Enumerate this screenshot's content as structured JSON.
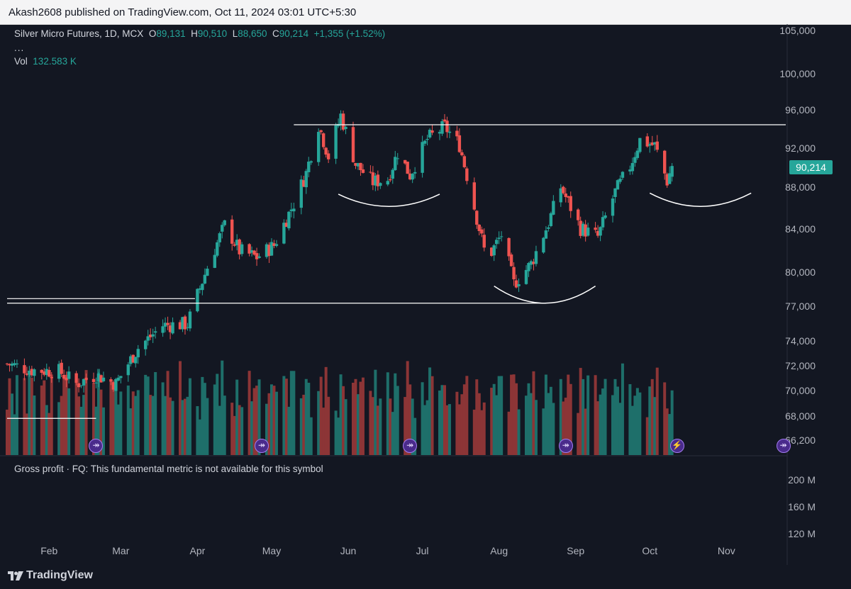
{
  "publisher": "Akash2608 published on TradingView.com, Oct 11, 2024 03:01 UTC+5:30",
  "legend": {
    "symbol": "Silver Micro Futures, 1D, MCX",
    "open_label": "O",
    "open": "89,131",
    "high_label": "H",
    "high": "90,510",
    "low_label": "L",
    "low": "88,650",
    "close_label": "C",
    "close": "90,214",
    "change": "+1,355 (+1.52%)",
    "more": "...",
    "vol_label": "Vol",
    "vol_value": "132.583 K"
  },
  "price_tag": "90,214",
  "gross_profit_text": "Gross profit · FQ: This fundamental metric is not available for this symbol",
  "brand": "TradingView",
  "colors": {
    "up": "#26a69a",
    "down": "#ef5350",
    "background": "#131722",
    "volume_up": "#1e6f6a",
    "volume_down": "#8c3536"
  },
  "chart_data": {
    "type": "candlestick",
    "title": "Silver Micro Futures, 1D, MCX",
    "y_axis_scale": "log",
    "y_ticks": [
      {
        "value": 105000,
        "label": "105,000"
      },
      {
        "value": 100000,
        "label": "100,000"
      },
      {
        "value": 96000,
        "label": "96,000"
      },
      {
        "value": 92000,
        "label": "92,000"
      },
      {
        "value": 88000,
        "label": "88,000"
      },
      {
        "value": 84000,
        "label": "84,000"
      },
      {
        "value": 80000,
        "label": "80,000"
      },
      {
        "value": 77000,
        "label": "77,000"
      },
      {
        "value": 74000,
        "label": "74,000"
      },
      {
        "value": 72000,
        "label": "72,000"
      },
      {
        "value": 70000,
        "label": "70,000"
      },
      {
        "value": 68000,
        "label": "68,000"
      },
      {
        "value": 66200,
        "label": "66,200"
      }
    ],
    "x_ticks": [
      "Feb",
      "Mar",
      "Apr",
      "May",
      "Jun",
      "Jul",
      "Aug",
      "Sep",
      "Oct",
      "Nov"
    ],
    "volume_ticks": [
      "200 M",
      "160 M",
      "120 M"
    ],
    "x_range": [
      "2024-01-15",
      "2024-11-25"
    ],
    "series_anchors": [
      {
        "date": "2024-01-15",
        "close": 72200
      },
      {
        "date": "2024-01-25",
        "close": 71700
      },
      {
        "date": "2024-02-05",
        "close": 71600
      },
      {
        "date": "2024-02-12",
        "close": 70600
      },
      {
        "date": "2024-02-20",
        "close": 71300
      },
      {
        "date": "2024-02-28",
        "close": 70600
      },
      {
        "date": "2024-03-08",
        "close": 73500
      },
      {
        "date": "2024-03-18",
        "close": 75400
      },
      {
        "date": "2024-03-28",
        "close": 75500
      },
      {
        "date": "2024-04-05",
        "close": 80500
      },
      {
        "date": "2024-04-12",
        "close": 84400
      },
      {
        "date": "2024-04-18",
        "close": 82000
      },
      {
        "date": "2024-04-25",
        "close": 81400
      },
      {
        "date": "2024-05-02",
        "close": 82500
      },
      {
        "date": "2024-05-10",
        "close": 86500
      },
      {
        "date": "2024-05-15",
        "close": 89500
      },
      {
        "date": "2024-05-20",
        "close": 94500
      },
      {
        "date": "2024-05-24",
        "close": 91200
      },
      {
        "date": "2024-05-29",
        "close": 95500
      },
      {
        "date": "2024-06-04",
        "close": 90400
      },
      {
        "date": "2024-06-11",
        "close": 88600
      },
      {
        "date": "2024-06-17",
        "close": 88900
      },
      {
        "date": "2024-06-21",
        "close": 91600
      },
      {
        "date": "2024-06-26",
        "close": 89300
      },
      {
        "date": "2024-07-03",
        "close": 93000
      },
      {
        "date": "2024-07-10",
        "close": 94300
      },
      {
        "date": "2024-07-16",
        "close": 92400
      },
      {
        "date": "2024-07-23",
        "close": 85100
      },
      {
        "date": "2024-07-27",
        "close": 81100
      },
      {
        "date": "2024-08-02",
        "close": 83500
      },
      {
        "date": "2024-08-07",
        "close": 79000
      },
      {
        "date": "2024-08-14",
        "close": 80800
      },
      {
        "date": "2024-08-21",
        "close": 84600
      },
      {
        "date": "2024-08-26",
        "close": 88100
      },
      {
        "date": "2024-09-03",
        "close": 84100
      },
      {
        "date": "2024-09-10",
        "close": 83300
      },
      {
        "date": "2024-09-17",
        "close": 87600
      },
      {
        "date": "2024-09-23",
        "close": 90200
      },
      {
        "date": "2024-09-27",
        "close": 92900
      },
      {
        "date": "2024-10-03",
        "close": 92300
      },
      {
        "date": "2024-10-08",
        "close": 88700
      },
      {
        "date": "2024-10-10",
        "close": 90214
      }
    ],
    "volume_range_raw": "volume bars shaded in the lower third of the price pane",
    "drawings": [
      {
        "type": "horizontal_line",
        "label": "resistance",
        "price": 94500,
        "from": "2024-05-10",
        "to": "2024-11-25"
      },
      {
        "type": "horizontal_line",
        "label": "support",
        "price": 77300,
        "from": "2024-01-15",
        "to": "2024-08-20"
      },
      {
        "type": "horizontal_line",
        "label": "support",
        "price": 77700,
        "from": "2024-01-15",
        "to": "2024-03-31"
      },
      {
        "type": "horizontal_line",
        "label": "base",
        "price": 67900,
        "from": "2024-01-15",
        "to": "2024-02-20"
      },
      {
        "type": "arc",
        "label": "rounded bottom 1",
        "from": "2024-05-28",
        "to": "2024-07-08",
        "low": 86200,
        "ends": 87400
      },
      {
        "type": "arc",
        "label": "rounded bottom 2",
        "from": "2024-07-30",
        "to": "2024-09-09",
        "low": 77300,
        "ends": 78800
      },
      {
        "type": "arc",
        "label": "rounded bottom 3",
        "from": "2024-10-01",
        "to": "2024-11-11",
        "low": 86200,
        "ends": 87500
      }
    ],
    "events": [
      {
        "date": "2024-02-20",
        "icon": "dividend-arrow-icon"
      },
      {
        "date": "2024-04-27",
        "icon": "dividend-arrow-icon"
      },
      {
        "date": "2024-06-26",
        "icon": "dividend-arrow-icon"
      },
      {
        "date": "2024-08-28",
        "icon": "dividend-arrow-icon"
      },
      {
        "date": "2024-10-12",
        "icon": "lightning-icon"
      },
      {
        "date": "2024-11-24",
        "icon": "dividend-arrow-icon"
      }
    ]
  }
}
